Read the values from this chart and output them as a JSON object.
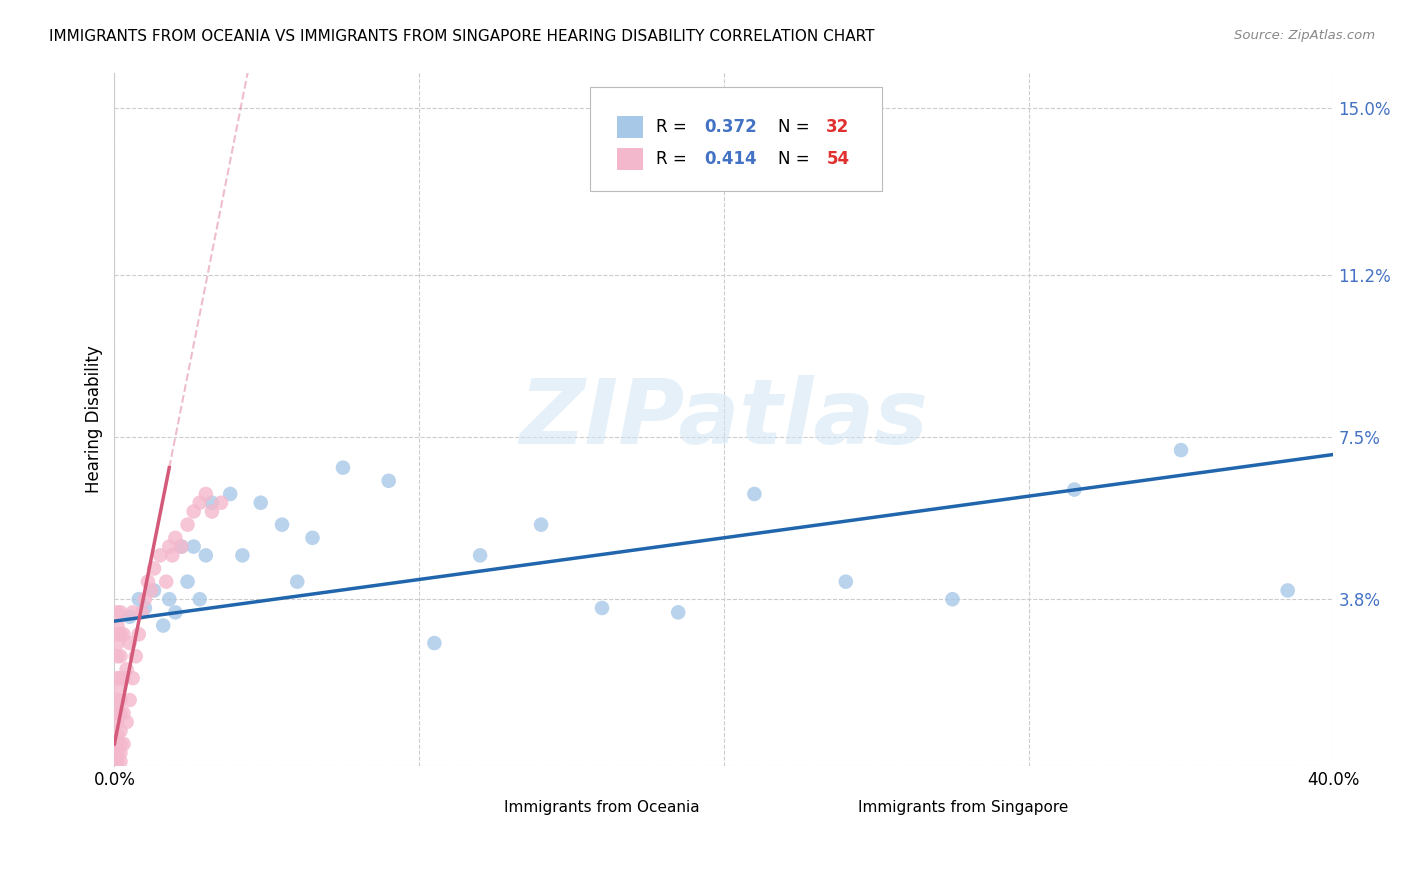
{
  "title": "IMMIGRANTS FROM OCEANIA VS IMMIGRANTS FROM SINGAPORE HEARING DISABILITY CORRELATION CHART",
  "source": "Source: ZipAtlas.com",
  "ylabel": "Hearing Disability",
  "y_ticks": [
    0.0,
    0.038,
    0.075,
    0.112,
    0.15
  ],
  "y_tick_labels": [
    "",
    "3.8%",
    "7.5%",
    "11.2%",
    "15.0%"
  ],
  "x_ticks": [
    0.0,
    0.1,
    0.2,
    0.3,
    0.4
  ],
  "x_tick_labels": [
    "0.0%",
    "",
    "",
    "",
    "40.0%"
  ],
  "legend_R1": "0.372",
  "legend_N1": "32",
  "legend_R2": "0.414",
  "legend_N2": "54",
  "blue_color": "#a8c8e8",
  "pink_color": "#f4b8cc",
  "blue_line_color": "#2166ac",
  "pink_line_color": "#d45a7a",
  "watermark": "ZIPatlas",
  "oceania_x": [
    0.005,
    0.008,
    0.01,
    0.013,
    0.016,
    0.018,
    0.02,
    0.022,
    0.024,
    0.026,
    0.028,
    0.03,
    0.032,
    0.038,
    0.042,
    0.048,
    0.055,
    0.06,
    0.065,
    0.075,
    0.09,
    0.105,
    0.12,
    0.14,
    0.16,
    0.185,
    0.21,
    0.24,
    0.275,
    0.315,
    0.35,
    0.385
  ],
  "oceania_y": [
    0.034,
    0.038,
    0.036,
    0.04,
    0.032,
    0.038,
    0.035,
    0.05,
    0.042,
    0.05,
    0.038,
    0.048,
    0.06,
    0.062,
    0.048,
    0.06,
    0.055,
    0.042,
    0.052,
    0.068,
    0.065,
    0.028,
    0.048,
    0.055,
    0.036,
    0.035,
    0.062,
    0.042,
    0.038,
    0.063,
    0.072,
    0.04
  ],
  "singapore_x": [
    0.001,
    0.001,
    0.001,
    0.001,
    0.001,
    0.001,
    0.001,
    0.001,
    0.001,
    0.001,
    0.001,
    0.001,
    0.001,
    0.001,
    0.001,
    0.002,
    0.002,
    0.002,
    0.002,
    0.002,
    0.002,
    0.002,
    0.002,
    0.002,
    0.002,
    0.003,
    0.003,
    0.003,
    0.003,
    0.004,
    0.004,
    0.005,
    0.005,
    0.006,
    0.006,
    0.007,
    0.008,
    0.009,
    0.01,
    0.011,
    0.012,
    0.013,
    0.015,
    0.017,
    0.018,
    0.019,
    0.02,
    0.022,
    0.024,
    0.026,
    0.028,
    0.03,
    0.032,
    0.035
  ],
  "singapore_y": [
    0.001,
    0.002,
    0.003,
    0.005,
    0.007,
    0.01,
    0.012,
    0.015,
    0.018,
    0.02,
    0.025,
    0.028,
    0.03,
    0.032,
    0.035,
    0.001,
    0.003,
    0.005,
    0.008,
    0.012,
    0.015,
    0.02,
    0.025,
    0.03,
    0.035,
    0.005,
    0.012,
    0.02,
    0.03,
    0.01,
    0.022,
    0.015,
    0.028,
    0.02,
    0.035,
    0.025,
    0.03,
    0.035,
    0.038,
    0.042,
    0.04,
    0.045,
    0.048,
    0.042,
    0.05,
    0.048,
    0.052,
    0.05,
    0.055,
    0.058,
    0.06,
    0.062,
    0.058,
    0.06
  ],
  "pink_trend_x0": 0.0,
  "pink_trend_x1": 0.018,
  "pink_trend_x_dash_end": 0.28,
  "pink_trend_slope": 3.5,
  "pink_trend_intercept": 0.005,
  "blue_trend_x0": 0.0,
  "blue_trend_x1": 0.4,
  "blue_trend_slope": 0.095,
  "blue_trend_intercept": 0.033
}
